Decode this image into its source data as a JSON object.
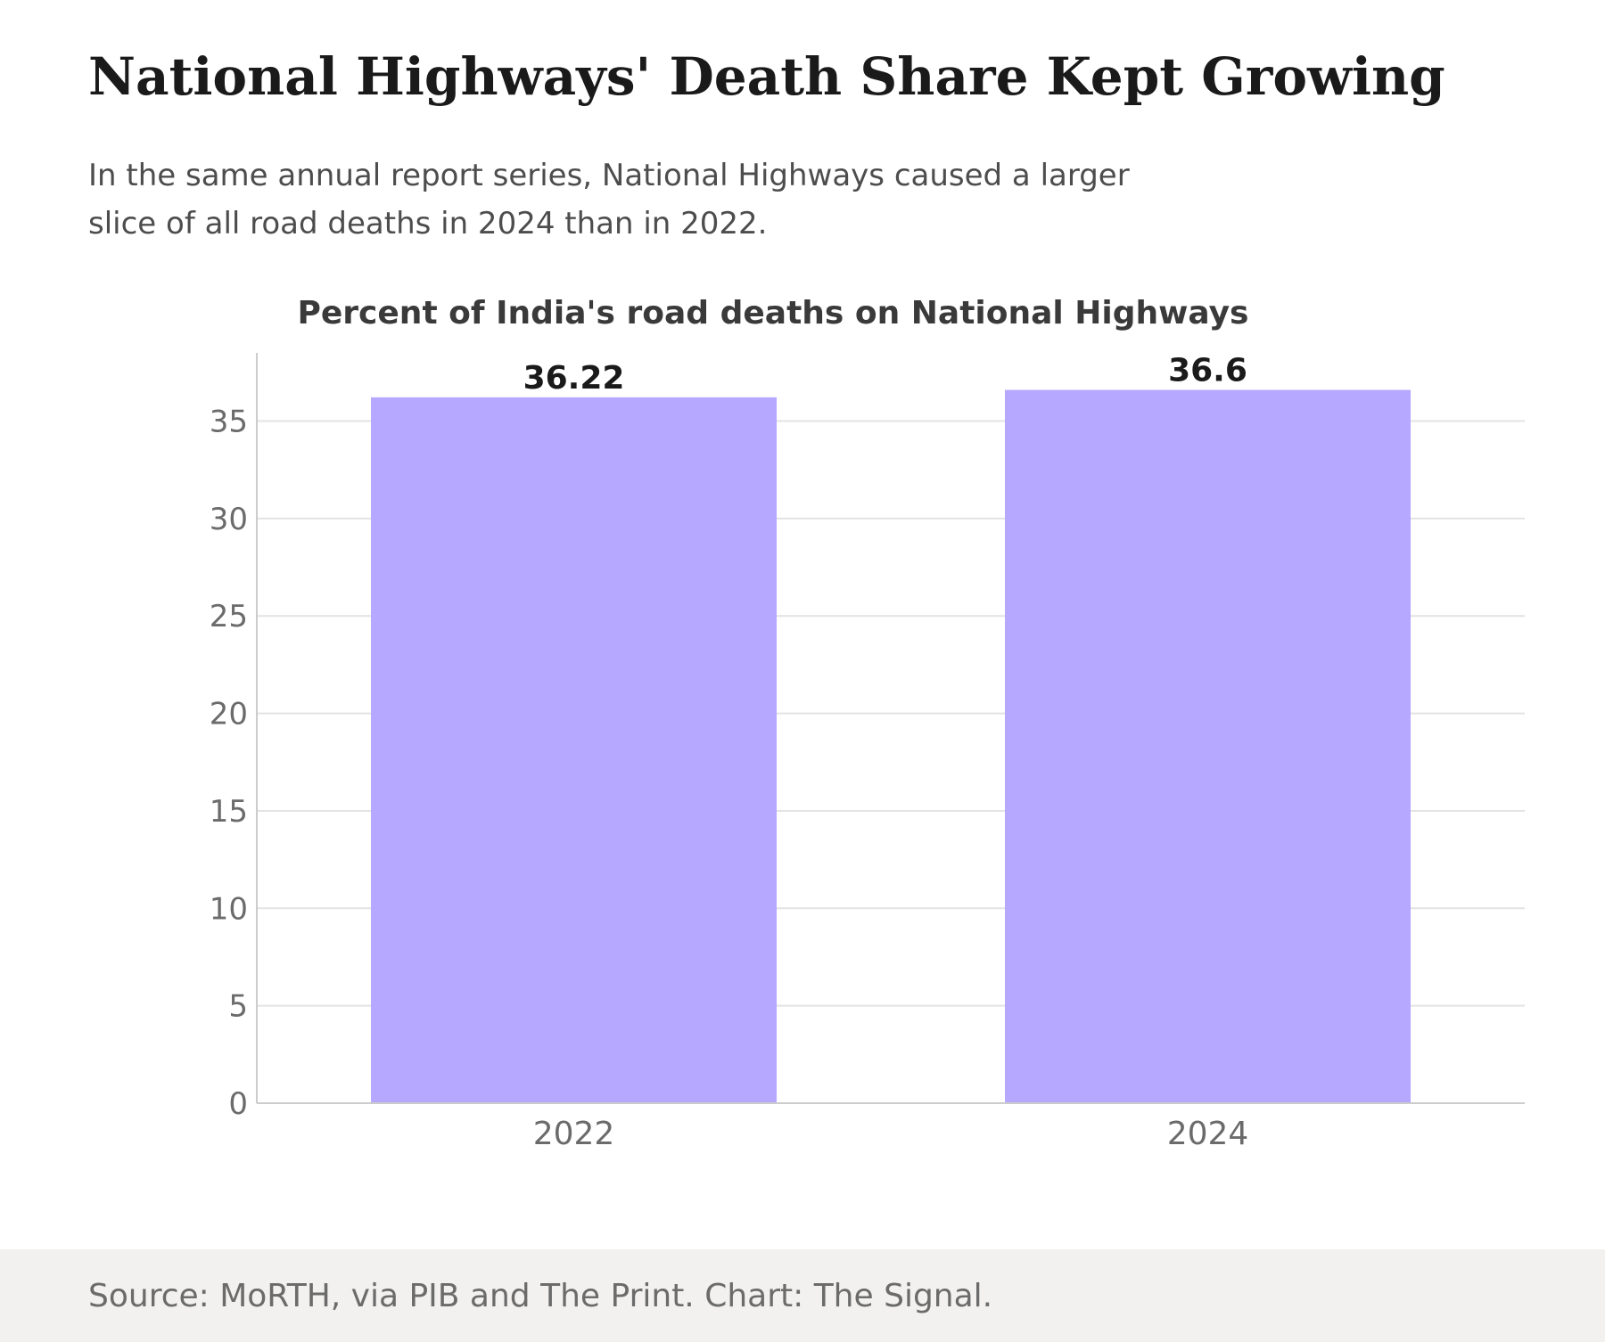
{
  "header": {
    "headline": "National Highways' Death Share Kept Growing",
    "subtitle_line1": "In the same annual report series, National Highways caused a larger",
    "subtitle_line2": "slice of all road deaths in 2024 than in 2022."
  },
  "footer": {
    "source": "Source: MoRTH, via PIB and The Print. Chart: The Signal."
  },
  "chart_data": {
    "type": "bar",
    "title": "Percent of India's road deaths on National Highways",
    "xlabel": "",
    "ylabel": "",
    "categories": [
      "2022",
      "2024"
    ],
    "values": [
      36.22,
      36.6
    ],
    "data_labels": [
      "36.22",
      "36.6"
    ],
    "ylim": [
      0,
      38.5
    ],
    "yticks": [
      0,
      5,
      10,
      15,
      20,
      25,
      30,
      35
    ],
    "grid": true,
    "colors": {
      "bar": "#b7a8ff",
      "grid": "#e3e3e3",
      "axis": "#cccccc",
      "tick_text": "#6b6b6b",
      "label_text": "#1a1a1a",
      "title_text": "#3a3a3a"
    }
  }
}
